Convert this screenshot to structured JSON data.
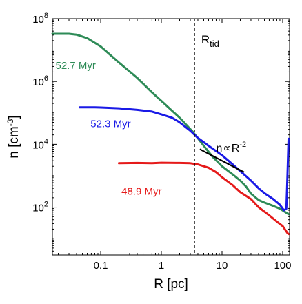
{
  "chart_data": {
    "type": "line",
    "title": "",
    "xlabel": "R [pc]",
    "ylabel_main": "n [cm",
    "ylabel_sup": "-3",
    "ylabel_close": "]",
    "x_scale": "log",
    "y_scale": "log",
    "xlim": [
      0.016,
      130
    ],
    "ylim": [
      3,
      100000000
    ],
    "grid": false,
    "x_ticks": [
      {
        "value": 0.1,
        "label": "0.1"
      },
      {
        "value": 1,
        "label": "1"
      },
      {
        "value": 10,
        "label": "10"
      },
      {
        "value": 100,
        "label": "100"
      }
    ],
    "y_ticks": [
      {
        "value": 100,
        "base": "10",
        "exp": "2"
      },
      {
        "value": 10000,
        "base": "10",
        "exp": "4"
      },
      {
        "value": 1000000,
        "base": "10",
        "exp": "6"
      },
      {
        "value": 100000000,
        "base": "10",
        "exp": "8"
      }
    ],
    "series": [
      {
        "name": "52.7 Myr",
        "color": "#2e8b57",
        "points": [
          [
            0.016,
            33000000
          ],
          [
            0.03,
            33000000
          ],
          [
            0.04,
            31000000
          ],
          [
            0.06,
            24000000
          ],
          [
            0.1,
            13000000
          ],
          [
            0.2,
            4000000
          ],
          [
            0.4,
            1300000
          ],
          [
            0.7,
            450000
          ],
          [
            1,
            240000
          ],
          [
            2,
            70000
          ],
          [
            3.3,
            25000
          ],
          [
            5,
            9000
          ],
          [
            7,
            4000
          ],
          [
            10,
            2000
          ],
          [
            15,
            1100
          ],
          [
            20,
            700
          ],
          [
            25,
            450
          ],
          [
            30,
            270
          ],
          [
            40,
            170
          ],
          [
            50,
            140
          ],
          [
            70,
            110
          ],
          [
            90,
            90
          ],
          [
            110,
            70
          ],
          [
            125,
            60
          ]
        ]
      },
      {
        "name": "52.3 Myr",
        "color": "#1a1ae6",
        "points": [
          [
            0.045,
            150000
          ],
          [
            0.08,
            150000
          ],
          [
            0.1,
            148000
          ],
          [
            0.2,
            140000
          ],
          [
            0.4,
            125000
          ],
          [
            0.7,
            110000
          ],
          [
            1,
            90000
          ],
          [
            1.5,
            70000
          ],
          [
            2,
            50000
          ],
          [
            3,
            27000
          ],
          [
            4,
            16000
          ],
          [
            6,
            9000
          ],
          [
            10,
            4500
          ],
          [
            15,
            2300
          ],
          [
            20,
            1400
          ],
          [
            30,
            700
          ],
          [
            40,
            400
          ],
          [
            50,
            280
          ],
          [
            70,
            180
          ],
          [
            90,
            120
          ],
          [
            105,
            80
          ],
          [
            115,
            90
          ],
          [
            120,
            1000
          ],
          [
            125,
            15000
          ]
        ]
      },
      {
        "name": "48.9 Myr",
        "color": "#e51a1a",
        "points": [
          [
            0.2,
            2500
          ],
          [
            0.4,
            2550
          ],
          [
            0.7,
            2500
          ],
          [
            1,
            2600
          ],
          [
            2,
            2550
          ],
          [
            3,
            2500
          ],
          [
            4,
            2300
          ],
          [
            6,
            1800
          ],
          [
            8,
            1300
          ],
          [
            10,
            900
          ],
          [
            15,
            500
          ],
          [
            20,
            300
          ],
          [
            30,
            180
          ],
          [
            40,
            100
          ],
          [
            60,
            55
          ],
          [
            80,
            35
          ],
          [
            100,
            25
          ],
          [
            120,
            15
          ],
          [
            125,
            14
          ]
        ]
      }
    ],
    "series_labels": [
      {
        "text": "52.7 Myr",
        "series": 0
      },
      {
        "text": "52.3 Myr",
        "series": 1
      },
      {
        "text": "48.9 Myr",
        "series": 2
      }
    ],
    "vline": {
      "x": 3.5,
      "label_main": "R",
      "label_sub": "tid"
    },
    "reference_line": {
      "from": [
        4.3,
        7000
      ],
      "to": [
        23,
        1300
      ],
      "label_prefix": "n",
      "label_symbol": "∝",
      "label_base": "R",
      "label_exp": "-2"
    }
  }
}
